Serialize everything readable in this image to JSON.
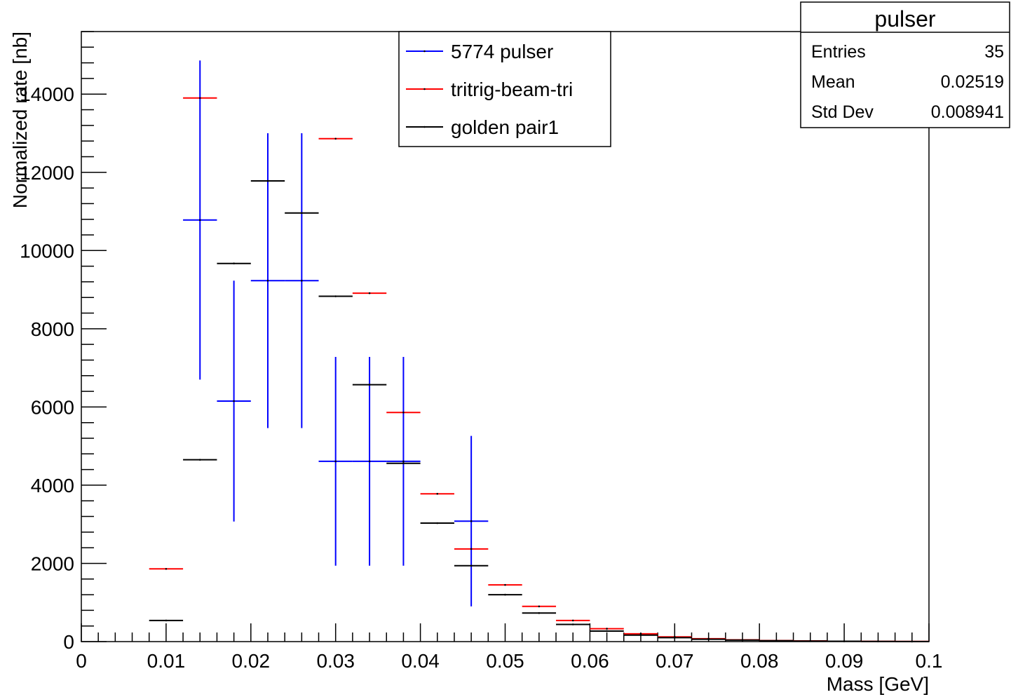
{
  "chart_data": {
    "type": "scatter",
    "xlabel": "Mass [GeV]",
    "ylabel": "Normalized rate [nb]",
    "xlim": [
      0,
      0.1
    ],
    "ylim": [
      0,
      15600
    ],
    "x_ticks": [
      0,
      0.01,
      0.02,
      0.03,
      0.04,
      0.05,
      0.06,
      0.07,
      0.08,
      0.09,
      0.1
    ],
    "x_tick_labels": [
      "0",
      "0.01",
      "0.02",
      "0.03",
      "0.04",
      "0.05",
      "0.06",
      "0.07",
      "0.08",
      "0.09",
      "0.1"
    ],
    "y_ticks": [
      0,
      2000,
      4000,
      6000,
      8000,
      10000,
      12000,
      14000
    ],
    "y_tick_labels": [
      "0",
      "2000",
      "4000",
      "6000",
      "8000",
      "10000",
      "12000",
      "14000"
    ],
    "bin_width": 0.004,
    "legend_position": "top-center",
    "series": [
      {
        "name": "5774 pulser",
        "color": "#0000ff",
        "points": [
          {
            "x": 0.014,
            "y": 10780,
            "err": 4080
          },
          {
            "x": 0.018,
            "y": 6150,
            "err": 3080
          },
          {
            "x": 0.022,
            "y": 9230,
            "err": 3770
          },
          {
            "x": 0.026,
            "y": 9230,
            "err": 3770
          },
          {
            "x": 0.03,
            "y": 4610,
            "err": 2670
          },
          {
            "x": 0.034,
            "y": 4610,
            "err": 2670
          },
          {
            "x": 0.038,
            "y": 4610,
            "err": 2670
          },
          {
            "x": 0.046,
            "y": 3080,
            "err": 2180
          }
        ]
      },
      {
        "name": "tritrig-beam-tri",
        "color": "#ff0000",
        "points": [
          {
            "x": 0.01,
            "y": 1860,
            "err": 0
          },
          {
            "x": 0.014,
            "y": 13900,
            "err": 0
          },
          {
            "x": 0.03,
            "y": 12860,
            "err": 0
          },
          {
            "x": 0.034,
            "y": 8910,
            "err": 0
          },
          {
            "x": 0.038,
            "y": 5860,
            "err": 0
          },
          {
            "x": 0.042,
            "y": 3780,
            "err": 0
          },
          {
            "x": 0.046,
            "y": 2370,
            "err": 0
          },
          {
            "x": 0.05,
            "y": 1450,
            "err": 0
          },
          {
            "x": 0.054,
            "y": 900,
            "err": 0
          },
          {
            "x": 0.058,
            "y": 540,
            "err": 0
          },
          {
            "x": 0.062,
            "y": 330,
            "err": 0
          },
          {
            "x": 0.066,
            "y": 200,
            "err": 0
          },
          {
            "x": 0.07,
            "y": 120,
            "err": 0
          },
          {
            "x": 0.074,
            "y": 75,
            "err": 0
          },
          {
            "x": 0.078,
            "y": 45,
            "err": 0
          },
          {
            "x": 0.082,
            "y": 28,
            "err": 0
          },
          {
            "x": 0.086,
            "y": 17,
            "err": 0
          },
          {
            "x": 0.09,
            "y": 10,
            "err": 0
          },
          {
            "x": 0.094,
            "y": 6,
            "err": 0
          },
          {
            "x": 0.098,
            "y": 4,
            "err": 0
          }
        ]
      },
      {
        "name": "golden pair1",
        "color": "#000000",
        "points": [
          {
            "x": 0.01,
            "y": 540,
            "err": 0
          },
          {
            "x": 0.014,
            "y": 4650,
            "err": 0
          },
          {
            "x": 0.018,
            "y": 9670,
            "err": 0
          },
          {
            "x": 0.022,
            "y": 11780,
            "err": 0
          },
          {
            "x": 0.026,
            "y": 10960,
            "err": 0
          },
          {
            "x": 0.03,
            "y": 8830,
            "err": 0
          },
          {
            "x": 0.034,
            "y": 6570,
            "err": 0
          },
          {
            "x": 0.038,
            "y": 4560,
            "err": 0
          },
          {
            "x": 0.042,
            "y": 3030,
            "err": 0
          },
          {
            "x": 0.046,
            "y": 1940,
            "err": 0
          },
          {
            "x": 0.05,
            "y": 1200,
            "err": 0
          },
          {
            "x": 0.054,
            "y": 730,
            "err": 0
          },
          {
            "x": 0.058,
            "y": 440,
            "err": 0
          },
          {
            "x": 0.062,
            "y": 270,
            "err": 0
          },
          {
            "x": 0.066,
            "y": 165,
            "err": 0
          },
          {
            "x": 0.07,
            "y": 100,
            "err": 0
          },
          {
            "x": 0.074,
            "y": 60,
            "err": 0
          },
          {
            "x": 0.078,
            "y": 37,
            "err": 0
          },
          {
            "x": 0.082,
            "y": 22,
            "err": 0
          },
          {
            "x": 0.086,
            "y": 13,
            "err": 0
          },
          {
            "x": 0.09,
            "y": 8,
            "err": 0
          },
          {
            "x": 0.094,
            "y": 5,
            "err": 0
          },
          {
            "x": 0.098,
            "y": 3,
            "err": 0
          }
        ]
      }
    ],
    "stats_box": {
      "title": "pulser",
      "rows": [
        {
          "label": "Entries",
          "value": "35"
        },
        {
          "label": "Mean",
          "value": "0.02519"
        },
        {
          "label": "Std Dev",
          "value": "0.008941"
        }
      ]
    }
  }
}
